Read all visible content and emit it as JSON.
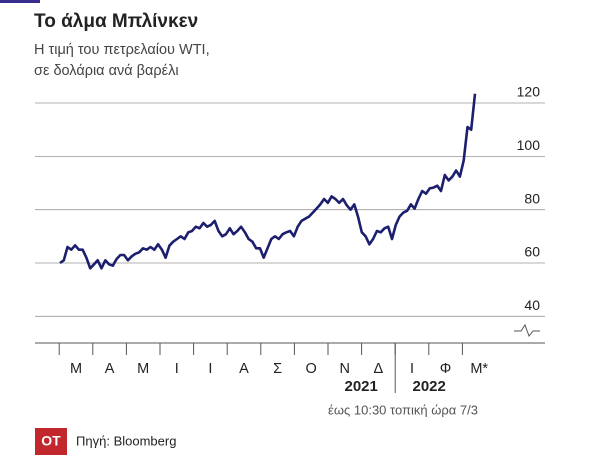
{
  "chart_data": {
    "type": "line",
    "title": "Το άλμα Μπλίνκεν",
    "subtitle": [
      "Η τιμή του πετρελαίου WTI,",
      "σε δολάρια ανά βαρέλι"
    ],
    "months": [
      "Μ",
      "Α",
      "Μ",
      "Ι",
      "Ι",
      "Α",
      "Σ",
      "Ο",
      "Ν",
      "Δ",
      "Ι",
      "Φ",
      "Μ*"
    ],
    "years": [
      "2021",
      "2022"
    ],
    "note": "έως 10:30 τοπική ώρα 7/3",
    "source": "Πηγή: Bloomberg",
    "logo": "OT",
    "color": "#1c1f6e",
    "values": [
      60,
      61,
      66,
      65,
      66.6,
      65,
      65,
      62,
      58,
      59.5,
      61,
      58,
      61,
      59.5,
      59,
      61.5,
      63,
      63,
      61,
      62.5,
      63.5,
      64,
      65.5,
      65,
      66,
      65,
      67,
      65,
      62,
      66.5,
      68,
      69,
      70,
      69,
      71.5,
      72,
      73.6,
      73,
      75,
      73.6,
      74.3,
      75.8,
      72,
      70,
      70.8,
      73,
      70.8,
      72,
      73.6,
      71.5,
      69,
      68,
      65.5,
      65.5,
      62,
      65.5,
      69,
      70,
      69,
      70.8,
      71.5,
      72,
      70,
      73.6,
      75.8,
      76.6,
      77.4,
      78.9,
      80.4,
      82,
      84,
      82.6,
      85,
      84,
      82.6,
      84,
      81.7,
      80,
      82,
      77.4,
      71.5,
      70,
      67,
      69,
      72,
      71.5,
      73,
      73.6,
      69,
      74.3,
      77.4,
      78.9,
      79.6,
      82,
      80.4,
      84,
      87,
      86,
      88,
      88.3,
      89,
      87,
      93,
      91,
      92.4,
      94.7,
      92.4,
      98.5,
      111,
      110,
      123.5
    ],
    "ylim": [
      30,
      125
    ],
    "yticks": [
      40,
      60,
      80,
      100,
      120
    ],
    "grid": true
  }
}
